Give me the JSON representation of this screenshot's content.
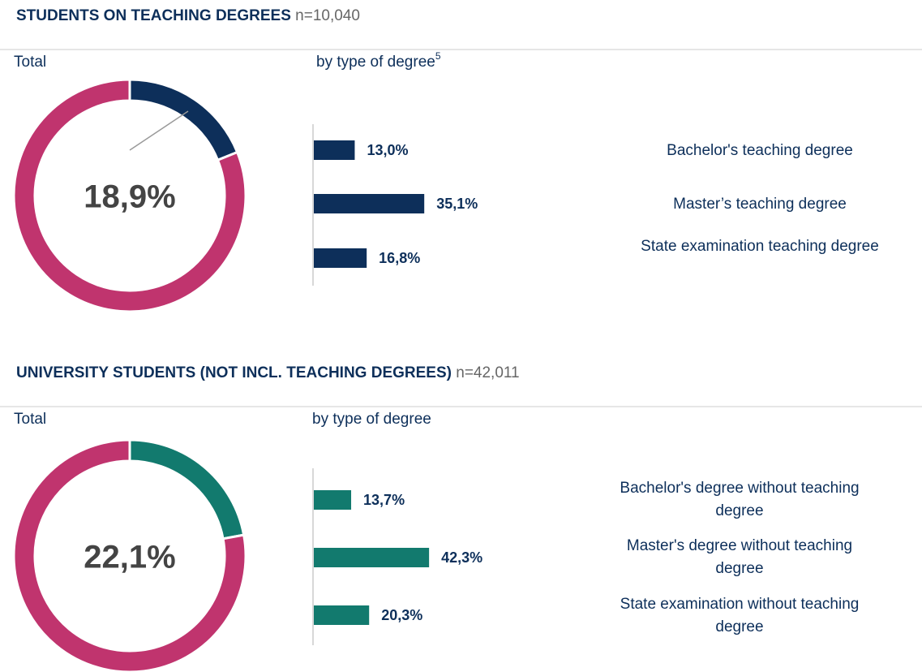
{
  "chart_data": [
    {
      "type": "donut",
      "title": "STUDENTS ON TEACHING DEGREES",
      "subtitle": "n=10,040",
      "label": "Total",
      "values": [
        18.9,
        81.1
      ],
      "value_labels": [
        "18,9%",
        null
      ],
      "colors": [
        "#0d2f5a",
        "#c0346e"
      ]
    },
    {
      "type": "barh",
      "title": "by type of degree",
      "title_note": "5",
      "categories": [
        "Bachelor's teaching degree",
        "Master’s teaching degree",
        "State examination teaching degree"
      ],
      "values": [
        13.0,
        35.1,
        16.8
      ],
      "value_labels": [
        "13,0%",
        "35,1%",
        "16,8%"
      ],
      "color": "#0d2f5a"
    },
    {
      "type": "donut",
      "title": "UNIVERSITY STUDENTS (NOT INCL. TEACHING DEGREES)",
      "subtitle": "n=42,011",
      "label": "Total",
      "values": [
        22.1,
        77.9
      ],
      "value_labels": [
        "22,1%",
        null
      ],
      "colors": [
        "#127a6e",
        "#c0346e"
      ]
    },
    {
      "type": "barh",
      "title": "by type of degree",
      "categories": [
        "Bachelor's degree without teaching degree",
        "Master's degree without teaching degree",
        "State examination without teaching degree"
      ],
      "values": [
        13.7,
        42.3,
        20.3
      ],
      "value_labels": [
        "13,7%",
        "42,3%",
        "20,3%"
      ],
      "color": "#127a6e"
    }
  ]
}
